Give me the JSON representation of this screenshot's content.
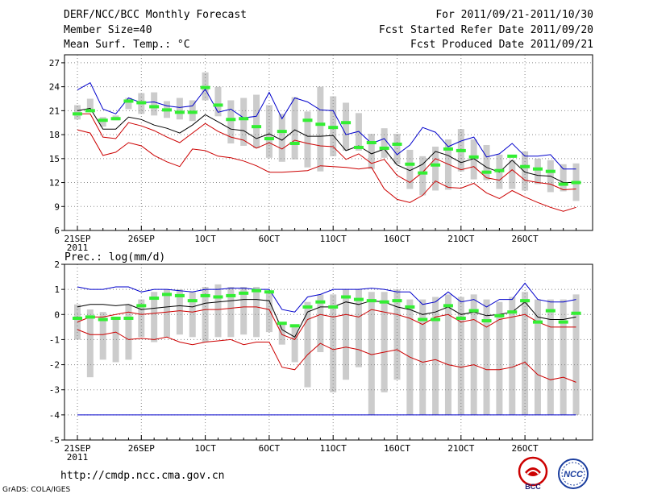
{
  "header": {
    "title": "DERF/NCC/BCC Monthly Forecast",
    "member_size": "Member Size=40",
    "variable": "Mean Surf. Temp.: °C",
    "period": "For 2011/09/21-2011/10/30",
    "fcst_started": "Fcst Started Refer Date 2011/09/20",
    "fcst_produced": "Fcst Produced Date 2011/09/21"
  },
  "footer": {
    "url": "http://cmdp.ncc.cma.gov.cn",
    "grads_credit": "GrADS: COLA/IGES",
    "logo_left_text": "BCC",
    "logo_right_text": "NCC"
  },
  "colors": {
    "max": "#0000cc",
    "mean": "#000000",
    "ctrl": "#cc0000",
    "min": "#cc0000",
    "obs_marker": "#33ee33",
    "box": "#cccccc",
    "grid": "#888888"
  },
  "chart_data": [
    {
      "type": "line",
      "title": "Mean Surf. Temp.: °C",
      "ylabel": "°C",
      "ylim": [
        6,
        28
      ],
      "yticks": [
        6,
        9,
        12,
        15,
        18,
        21,
        24,
        27
      ],
      "grid": true,
      "x": [
        "09/21",
        "09/22",
        "09/23",
        "09/24",
        "09/25",
        "09/26",
        "09/27",
        "09/28",
        "09/29",
        "09/30",
        "10/01",
        "10/02",
        "10/03",
        "10/04",
        "10/05",
        "10/06",
        "10/07",
        "10/08",
        "10/09",
        "10/10",
        "10/11",
        "10/12",
        "10/13",
        "10/14",
        "10/15",
        "10/16",
        "10/17",
        "10/18",
        "10/19",
        "10/20",
        "10/21",
        "10/22",
        "10/23",
        "10/24",
        "10/25",
        "10/26",
        "10/27",
        "10/28",
        "10/29",
        "10/30"
      ],
      "x_tick_labels": [
        {
          "day": 0,
          "label": "21SEP",
          "sub": "2011"
        },
        {
          "day": 5,
          "label": "26SEP"
        },
        {
          "day": 10,
          "label": "1OCT"
        },
        {
          "day": 15,
          "label": "6OCT"
        },
        {
          "day": 20,
          "label": "11OCT"
        },
        {
          "day": 25,
          "label": "16OCT"
        },
        {
          "day": 30,
          "label": "21OCT"
        },
        {
          "day": 35,
          "label": "26OCT"
        }
      ],
      "series": [
        {
          "name": "max",
          "values": [
            23.6,
            24.5,
            21.2,
            20.6,
            22.6,
            22.0,
            22.1,
            21.6,
            21.4,
            21.6,
            23.7,
            20.8,
            21.2,
            20.1,
            20.3,
            23.3,
            20.0,
            22.6,
            22.1,
            21.1,
            21.0,
            18.0,
            18.4,
            16.9,
            17.5,
            15.5,
            16.7,
            18.9,
            18.3,
            16.5,
            17.2,
            17.7,
            15.2,
            15.6,
            16.9,
            15.3,
            15.3,
            15.5,
            13.7,
            13.7
          ]
        },
        {
          "name": "mean",
          "values": [
            21.0,
            21.3,
            18.7,
            18.7,
            20.2,
            19.9,
            19.2,
            18.8,
            18.2,
            19.2,
            20.5,
            19.6,
            18.7,
            18.5,
            17.5,
            18.1,
            17.3,
            18.6,
            17.8,
            17.8,
            17.9,
            16.0,
            16.6,
            15.6,
            16.2,
            14.2,
            13.5,
            14.3,
            15.9,
            15.4,
            14.5,
            15.0,
            13.9,
            13.3,
            14.8,
            13.3,
            12.9,
            12.8,
            12.0,
            12.0
          ]
        },
        {
          "name": "ctrl",
          "values": [
            20.6,
            20.6,
            17.7,
            17.5,
            19.5,
            19.1,
            18.5,
            17.7,
            17.0,
            18.2,
            19.4,
            18.4,
            17.7,
            17.3,
            16.3,
            17.0,
            16.2,
            17.3,
            16.9,
            16.6,
            16.5,
            14.9,
            15.6,
            14.4,
            14.9,
            12.9,
            12.0,
            13.3,
            15.0,
            14.3,
            13.6,
            14.0,
            12.6,
            12.3,
            13.6,
            12.3,
            12.0,
            11.8,
            11.1,
            11.2
          ]
        },
        {
          "name": "min",
          "values": [
            18.6,
            18.2,
            15.4,
            15.8,
            17.0,
            16.6,
            15.4,
            14.6,
            14.0,
            16.2,
            16.0,
            15.3,
            15.1,
            14.7,
            14.1,
            13.3,
            13.3,
            13.4,
            13.5,
            14.1,
            14.0,
            13.9,
            13.7,
            13.9,
            11.2,
            9.9,
            9.5,
            10.4,
            12.2,
            11.4,
            11.3,
            11.9,
            10.7,
            10.0,
            11.0,
            10.2,
            9.5,
            8.9,
            8.4,
            8.9
          ]
        },
        {
          "name": "obs",
          "values": [
            20.6,
            21.0,
            19.8,
            20.0,
            22.2,
            22.0,
            21.5,
            21.1,
            20.8,
            20.8,
            23.9,
            21.7,
            19.9,
            20.0,
            19.0,
            17.5,
            18.4,
            16.9,
            19.8,
            19.3,
            18.9,
            19.5,
            16.4,
            17.0,
            16.3,
            16.8,
            14.3,
            13.2,
            14.2,
            16.2,
            16.0,
            15.2,
            13.3,
            13.5,
            15.3,
            14.0,
            13.7,
            13.4,
            11.8,
            12.0
          ]
        }
      ],
      "boxes": [
        [
          19.9,
          21.7
        ],
        [
          20.9,
          22.5
        ],
        [
          19.0,
          20.2
        ],
        [
          19.8,
          20.4
        ],
        [
          21.2,
          22.6
        ],
        [
          20.6,
          23.2
        ],
        [
          20.4,
          23.3
        ],
        [
          20.1,
          22.2
        ],
        [
          19.9,
          22.6
        ],
        [
          19.7,
          22.3
        ],
        [
          22.3,
          25.8
        ],
        [
          20.3,
          24.0
        ],
        [
          16.9,
          22.3
        ],
        [
          16.6,
          22.6
        ],
        [
          16.3,
          23.0
        ],
        [
          15.1,
          21.7
        ],
        [
          14.6,
          20.6
        ],
        [
          14.9,
          22.7
        ],
        [
          13.9,
          20.9
        ],
        [
          13.4,
          24.0
        ],
        [
          15.3,
          22.8
        ],
        [
          16.0,
          22.0
        ],
        [
          16.0,
          20.7
        ],
        [
          13.7,
          18.1
        ],
        [
          15.1,
          18.8
        ],
        [
          14.3,
          18.1
        ],
        [
          11.2,
          16.1
        ],
        [
          10.4,
          15.3
        ],
        [
          11.0,
          16.5
        ],
        [
          11.1,
          17.4
        ],
        [
          13.4,
          18.7
        ],
        [
          12.4,
          17.4
        ],
        [
          12.3,
          16.7
        ],
        [
          11.2,
          15.5
        ],
        [
          11.2,
          14.8
        ],
        [
          11.0,
          15.9
        ],
        [
          11.8,
          15.0
        ],
        [
          10.8,
          14.8
        ],
        [
          10.9,
          14.3
        ],
        [
          9.7,
          14.4
        ]
      ]
    },
    {
      "type": "line",
      "title": "Prec.: log(mm/d)",
      "ylabel": "log(mm/d)",
      "ylim": [
        -5,
        2
      ],
      "yticks": [
        -5,
        -4,
        -3,
        -2,
        -1,
        0,
        1,
        2
      ],
      "grid": true,
      "x_tick_labels": [
        {
          "day": 0,
          "label": "21SEP",
          "sub": "2011"
        },
        {
          "day": 5,
          "label": "26SEP"
        },
        {
          "day": 10,
          "label": "1OCT"
        },
        {
          "day": 15,
          "label": "6OCT"
        },
        {
          "day": 20,
          "label": "11OCT"
        },
        {
          "day": 25,
          "label": "16OCT"
        },
        {
          "day": 30,
          "label": "21OCT"
        },
        {
          "day": 35,
          "label": "26OCT"
        }
      ],
      "series": [
        {
          "name": "max",
          "values": [
            1.1,
            1.0,
            1.0,
            1.1,
            1.1,
            0.9,
            1.0,
            1.0,
            0.95,
            0.9,
            1.0,
            1.0,
            1.05,
            1.05,
            1.0,
            1.0,
            0.2,
            0.1,
            0.7,
            0.8,
            1.0,
            1.0,
            1.0,
            1.05,
            1.0,
            0.9,
            0.9,
            0.4,
            0.5,
            0.9,
            0.5,
            0.6,
            0.3,
            0.6,
            0.6,
            1.25,
            0.6,
            0.5,
            0.5,
            0.6
          ]
        },
        {
          "name": "mean",
          "values": [
            0.3,
            0.4,
            0.4,
            0.35,
            0.4,
            0.2,
            0.25,
            0.3,
            0.35,
            0.3,
            0.45,
            0.5,
            0.55,
            0.6,
            0.6,
            0.55,
            -0.6,
            -0.9,
            0.1,
            0.3,
            0.3,
            0.5,
            0.4,
            0.55,
            0.5,
            0.3,
            0.2,
            0.0,
            0.1,
            0.3,
            0.0,
            0.1,
            -0.05,
            0.0,
            0.1,
            0.5,
            -0.1,
            -0.2,
            -0.2,
            -0.1
          ]
        },
        {
          "name": "ctrl",
          "values": [
            -0.3,
            -0.1,
            -0.1,
            0.0,
            0.1,
            0.0,
            0.05,
            0.1,
            0.15,
            0.1,
            0.2,
            0.2,
            0.25,
            0.3,
            0.3,
            0.2,
            -0.8,
            -1.0,
            -0.2,
            0.0,
            -0.1,
            0.0,
            -0.1,
            0.2,
            0.1,
            0.0,
            -0.15,
            -0.4,
            -0.1,
            0.0,
            -0.3,
            -0.2,
            -0.5,
            -0.2,
            -0.1,
            0.0,
            -0.3,
            -0.5,
            -0.5,
            -0.5
          ]
        },
        {
          "name": "min",
          "values": [
            -0.6,
            -0.8,
            -0.8,
            -0.7,
            -1.0,
            -0.95,
            -1.0,
            -0.9,
            -1.1,
            -1.2,
            -1.1,
            -1.05,
            -1.0,
            -1.2,
            -1.1,
            -1.1,
            -2.1,
            -2.2,
            -1.6,
            -1.15,
            -1.4,
            -1.3,
            -1.4,
            -1.6,
            -1.5,
            -1.4,
            -1.7,
            -1.9,
            -1.8,
            -2.0,
            -2.1,
            -2.0,
            -2.2,
            -2.2,
            -2.1,
            -1.9,
            -2.4,
            -2.6,
            -2.5,
            -2.7
          ]
        },
        {
          "name": "obs",
          "values": [
            -0.15,
            -0.1,
            -0.2,
            -0.15,
            -0.15,
            0.35,
            0.65,
            0.8,
            0.75,
            0.55,
            0.75,
            0.7,
            0.75,
            0.85,
            0.95,
            0.9,
            -0.35,
            -0.45,
            0.3,
            0.5,
            0.3,
            0.7,
            0.6,
            0.55,
            0.5,
            0.55,
            0.3,
            -0.2,
            -0.2,
            0.35,
            -0.15,
            0.15,
            -0.25,
            -0.05,
            0.1,
            0.55,
            -0.3,
            0.15,
            -0.3,
            0.05
          ]
        },
        {
          "name": "floor",
          "values": [
            -4,
            -4,
            -4,
            -4,
            -4,
            -4,
            -4,
            -4,
            -4,
            -4,
            -4,
            -4,
            -4,
            -4,
            -4,
            -4,
            -4,
            -4,
            -4,
            -4,
            -4,
            -4,
            -4,
            -4,
            -4,
            -4,
            -4,
            -4,
            -4,
            -4,
            -4,
            -4,
            -4,
            -4,
            -4,
            -4,
            -4,
            -4,
            -4,
            -4
          ]
        }
      ],
      "boxes": [
        [
          -1.0,
          0.4
        ],
        [
          -2.5,
          0.2
        ],
        [
          -1.8,
          0.1
        ],
        [
          -1.9,
          -0.1
        ],
        [
          -1.8,
          0.4
        ],
        [
          -0.9,
          0.6
        ],
        [
          -1.1,
          0.9
        ],
        [
          -0.9,
          1.0
        ],
        [
          -0.8,
          1.0
        ],
        [
          -0.9,
          0.9
        ],
        [
          -1.1,
          1.1
        ],
        [
          -0.9,
          1.2
        ],
        [
          -0.9,
          1.1
        ],
        [
          -0.8,
          1.1
        ],
        [
          -0.9,
          1.1
        ],
        [
          -0.7,
          0.9
        ],
        [
          -1.2,
          -0.3
        ],
        [
          -1.9,
          -0.4
        ],
        [
          -2.9,
          0.5
        ],
        [
          -1.5,
          0.8
        ],
        [
          -3.1,
          0.8
        ],
        [
          -2.6,
          1.0
        ],
        [
          -2.1,
          1.0
        ],
        [
          -4.0,
          0.9
        ],
        [
          -3.1,
          0.9
        ],
        [
          -2.6,
          1.0
        ],
        [
          -4.0,
          0.6
        ],
        [
          -4.0,
          0.6
        ],
        [
          -4.0,
          0.7
        ],
        [
          -4.0,
          0.8
        ],
        [
          -4.0,
          0.7
        ],
        [
          -4.0,
          0.8
        ],
        [
          -4.0,
          0.6
        ],
        [
          -4.0,
          0.5
        ],
        [
          -4.0,
          0.7
        ],
        [
          -4.0,
          0.9
        ],
        [
          -4.0,
          0.6
        ],
        [
          -4.0,
          0.6
        ],
        [
          -4.0,
          0.6
        ],
        [
          -4.0,
          0.8
        ]
      ]
    }
  ]
}
